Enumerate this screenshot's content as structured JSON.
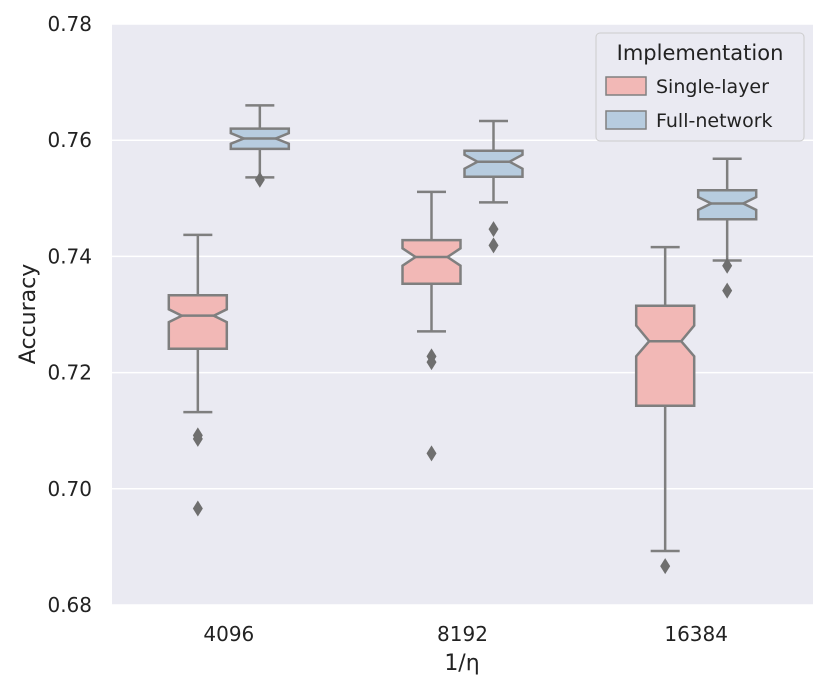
{
  "chart_data": {
    "type": "boxplot",
    "notched": true,
    "xlabel": "1/η",
    "ylabel": "Accuracy",
    "ylim": [
      0.68,
      0.78
    ],
    "yticks": [
      "0.68",
      "0.70",
      "0.72",
      "0.74",
      "0.76",
      "0.78"
    ],
    "ytick_values": [
      0.68,
      0.7,
      0.72,
      0.74,
      0.76,
      0.78
    ],
    "categories": [
      "4096",
      "8192",
      "16384"
    ],
    "grid": true,
    "legend": {
      "title": "Implementation",
      "position": "top-right",
      "entries": [
        {
          "name": "Single-layer",
          "color": "#f2b8b6"
        },
        {
          "name": "Full-network",
          "color": "#b7ccdf"
        }
      ]
    },
    "series": [
      {
        "name": "Single-layer",
        "color": "#f2b8b6",
        "boxes": [
          {
            "category": "4096",
            "whisker_low": 0.7132,
            "q1": 0.7241,
            "median": 0.7298,
            "q3": 0.7333,
            "whisker_high": 0.7437,
            "notch_low": 0.7287,
            "notch_high": 0.7309,
            "outliers": [
              0.7092,
              0.7086,
              0.6966
            ]
          },
          {
            "category": "8192",
            "whisker_low": 0.7271,
            "q1": 0.7353,
            "median": 0.7399,
            "q3": 0.7428,
            "whisker_high": 0.7511,
            "notch_low": 0.7384,
            "notch_high": 0.7414,
            "outliers": [
              0.7228,
              0.7218,
              0.7061
            ]
          },
          {
            "category": "16384",
            "whisker_low": 0.6893,
            "q1": 0.7143,
            "median": 0.7254,
            "q3": 0.7315,
            "whisker_high": 0.7416,
            "notch_low": 0.7228,
            "notch_high": 0.7281,
            "outliers": [
              0.6867
            ]
          }
        ]
      },
      {
        "name": "Full-network",
        "color": "#b7ccdf",
        "boxes": [
          {
            "category": "4096",
            "whisker_low": 0.7536,
            "q1": 0.7585,
            "median": 0.7603,
            "q3": 0.762,
            "whisker_high": 0.766,
            "notch_low": 0.7594,
            "notch_high": 0.7612,
            "outliers": [
              0.7532
            ]
          },
          {
            "category": "8192",
            "whisker_low": 0.7493,
            "q1": 0.7537,
            "median": 0.7563,
            "q3": 0.7582,
            "whisker_high": 0.7633,
            "notch_low": 0.7551,
            "notch_high": 0.7575,
            "outliers": [
              0.7447,
              0.7419
            ]
          },
          {
            "category": "16384",
            "whisker_low": 0.7393,
            "q1": 0.7464,
            "median": 0.7491,
            "q3": 0.7514,
            "whisker_high": 0.7568,
            "notch_low": 0.748,
            "notch_high": 0.7502,
            "outliers": [
              0.7384,
              0.7341
            ]
          }
        ]
      }
    ]
  }
}
